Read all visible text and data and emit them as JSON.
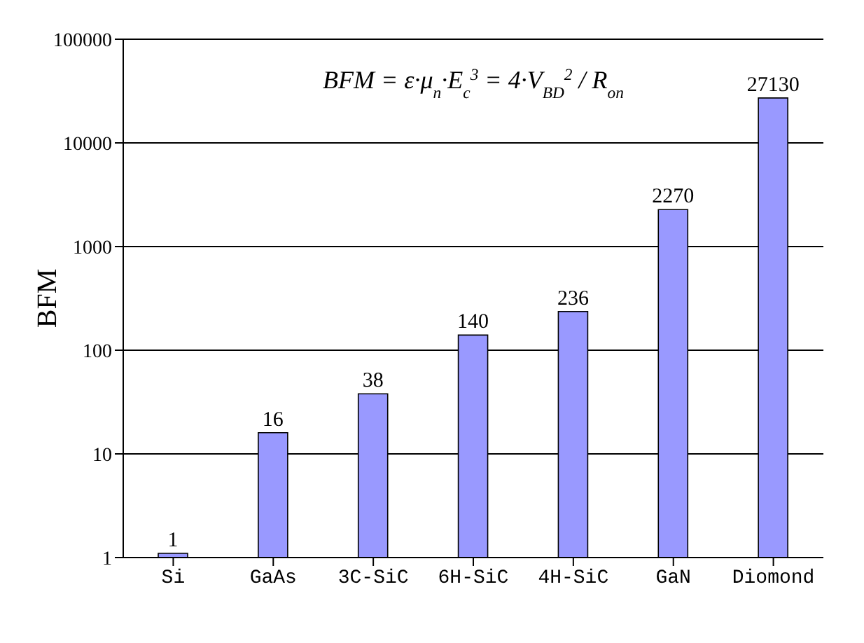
{
  "chart_data": {
    "type": "bar",
    "ylabel": "BFM",
    "annotations": [
      "BFM = ε·μ$_{n}$·E$_{c}$$^{3}$ = 4·V$_{BD}$$^{2}$ / R$_{on}$"
    ],
    "categories": [
      "Si",
      "GaAs",
      "3C-SiC",
      "6H-SiC",
      "4H-SiC",
      "GaN",
      "Diomond"
    ],
    "values": [
      1,
      16,
      38,
      140,
      236,
      2270,
      27130
    ],
    "color": "#9999ff",
    "log": true,
    "ylim": [
      1,
      100000
    ],
    "yticks": [
      1,
      10,
      100,
      1000,
      10000,
      100000
    ],
    "grid": "y",
    "data_labels": true,
    "legend": false
  }
}
